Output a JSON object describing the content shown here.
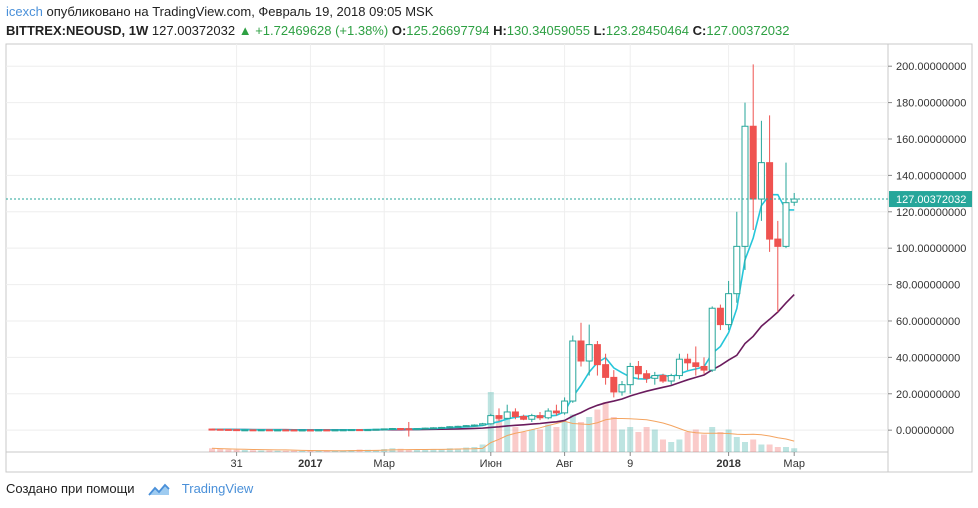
{
  "header": {
    "author": "icexch",
    "published_text": "опубликовано на TradingView.com, Февраль 19, 2018 09:05 MSK",
    "symbol": "BITTREX:NEOUSD, 1W",
    "price": "127.00372032",
    "change_arrow": "▲",
    "change": "+1.72469628 (+1.38%)",
    "o_label": "O:",
    "o_value": "125.26697794",
    "h_label": "H:",
    "h_value": "130.34059055",
    "l_label": "L:",
    "l_value": "123.28450464",
    "c_label": "C:",
    "c_value": "127.00372032"
  },
  "footer": {
    "created_with": "Создано при помощи",
    "brand": "TradingView"
  },
  "colors": {
    "up": "#26a69a",
    "down": "#ef5350",
    "ma_fast": "#26c6da",
    "ma_slow": "#6a1b5d",
    "vol_ma": "#f4a460",
    "price_tag": "#26a69a"
  },
  "chart_data": {
    "type": "candlestick",
    "y_axis": {
      "ylim": [
        -12,
        210
      ],
      "ticks": [
        "200.00000000",
        "180.00000000",
        "160.00000000",
        "140.00000000",
        "120.00000000",
        "100.00000000",
        "80.00000000",
        "60.00000000",
        "40.00000000",
        "20.00000000",
        "0.00000000"
      ],
      "tick_values": [
        200,
        180,
        160,
        140,
        120,
        100,
        80,
        60,
        40,
        20,
        0
      ]
    },
    "x_axis": {
      "labels": [
        "31",
        "2017",
        "Мар",
        "Июн",
        "Авг",
        "9",
        "2018",
        "Мар"
      ],
      "label_index": [
        3,
        12,
        21,
        34,
        43,
        51,
        63,
        71
      ]
    },
    "last_price_label": "127.00372032",
    "last_price": 127.0,
    "candles": [
      {
        "o": 0.6,
        "h": 0.8,
        "l": 0.4,
        "c": 0.5
      },
      {
        "o": 0.5,
        "h": 0.7,
        "l": 0.3,
        "c": 0.4
      },
      {
        "o": 0.4,
        "h": 0.6,
        "l": 0.2,
        "c": 0.3
      },
      {
        "o": 0.3,
        "h": 0.5,
        "l": 0.1,
        "c": 0.2
      },
      {
        "o": 0.2,
        "h": 0.4,
        "l": 0.1,
        "c": 0.2
      },
      {
        "o": 0.2,
        "h": 0.3,
        "l": 0.1,
        "c": 0.15
      },
      {
        "o": 0.15,
        "h": 0.3,
        "l": 0.1,
        "c": 0.2
      },
      {
        "o": 0.2,
        "h": 0.3,
        "l": 0.1,
        "c": 0.15
      },
      {
        "o": 0.15,
        "h": 0.25,
        "l": 0.1,
        "c": 0.15
      },
      {
        "o": 0.15,
        "h": 0.2,
        "l": 0.1,
        "c": 0.12
      },
      {
        "o": 0.12,
        "h": 0.2,
        "l": 0.08,
        "c": 0.1
      },
      {
        "o": 0.1,
        "h": 0.2,
        "l": 0.08,
        "c": 0.12
      },
      {
        "o": 0.12,
        "h": 0.18,
        "l": 0.08,
        "c": 0.1
      },
      {
        "o": 0.1,
        "h": 0.2,
        "l": 0.08,
        "c": 0.15
      },
      {
        "o": 0.15,
        "h": 0.25,
        "l": 0.1,
        "c": 0.14
      },
      {
        "o": 0.14,
        "h": 0.25,
        "l": 0.1,
        "c": 0.16
      },
      {
        "o": 0.16,
        "h": 0.3,
        "l": 0.12,
        "c": 0.2
      },
      {
        "o": 0.2,
        "h": 0.4,
        "l": 0.15,
        "c": 0.3
      },
      {
        "o": 0.3,
        "h": 0.5,
        "l": 0.2,
        "c": 0.25
      },
      {
        "o": 0.25,
        "h": 0.4,
        "l": 0.2,
        "c": 0.3
      },
      {
        "o": 0.3,
        "h": 0.6,
        "l": 0.2,
        "c": 0.5
      },
      {
        "o": 0.5,
        "h": 0.9,
        "l": 0.4,
        "c": 0.7
      },
      {
        "o": 0.7,
        "h": 1.2,
        "l": 0.5,
        "c": 0.9
      },
      {
        "o": 0.9,
        "h": 1.2,
        "l": 0.6,
        "c": 0.8
      },
      {
        "o": 0.8,
        "h": 4.5,
        "l": -3.5,
        "c": 0.6
      },
      {
        "o": 0.6,
        "h": 1.0,
        "l": 0.4,
        "c": 0.8
      },
      {
        "o": 0.8,
        "h": 1.4,
        "l": 0.6,
        "c": 1.1
      },
      {
        "o": 1.1,
        "h": 1.6,
        "l": 0.8,
        "c": 1.3
      },
      {
        "o": 1.3,
        "h": 1.8,
        "l": 1.0,
        "c": 1.5
      },
      {
        "o": 1.5,
        "h": 2.2,
        "l": 1.2,
        "c": 1.9
      },
      {
        "o": 1.9,
        "h": 2.4,
        "l": 1.5,
        "c": 2.1
      },
      {
        "o": 2.1,
        "h": 2.8,
        "l": 1.8,
        "c": 2.5
      },
      {
        "o": 2.5,
        "h": 3.2,
        "l": 2.0,
        "c": 2.8
      },
      {
        "o": 2.8,
        "h": 4.0,
        "l": 2.5,
        "c": 3.5
      },
      {
        "o": 3.5,
        "h": 9.0,
        "l": 3.0,
        "c": 8.0
      },
      {
        "o": 8.0,
        "h": 12.0,
        "l": 5.0,
        "c": 6.5
      },
      {
        "o": 6.5,
        "h": 14.0,
        "l": 6.0,
        "c": 10.0
      },
      {
        "o": 10.0,
        "h": 12.0,
        "l": 6.0,
        "c": 7.5
      },
      {
        "o": 7.5,
        "h": 8.5,
        "l": 5.5,
        "c": 6.0
      },
      {
        "o": 6.0,
        "h": 9.0,
        "l": 4.5,
        "c": 8.0
      },
      {
        "o": 8.0,
        "h": 10.0,
        "l": 5.5,
        "c": 6.8
      },
      {
        "o": 6.8,
        "h": 12.0,
        "l": 6.0,
        "c": 10.5
      },
      {
        "o": 10.5,
        "h": 14.0,
        "l": 8.0,
        "c": 9.5
      },
      {
        "o": 9.5,
        "h": 18.0,
        "l": 8.5,
        "c": 16.0
      },
      {
        "o": 16.0,
        "h": 52.0,
        "l": 15.0,
        "c": 49.0
      },
      {
        "o": 49.0,
        "h": 59.0,
        "l": 35.0,
        "c": 38.0
      },
      {
        "o": 38.0,
        "h": 58.0,
        "l": 30.0,
        "c": 47.0
      },
      {
        "o": 47.0,
        "h": 49.0,
        "l": 30.0,
        "c": 36.0
      },
      {
        "o": 36.0,
        "h": 42.0,
        "l": 25.0,
        "c": 29.0
      },
      {
        "o": 29.0,
        "h": 33.0,
        "l": 18.0,
        "c": 21.0
      },
      {
        "o": 21.0,
        "h": 27.0,
        "l": 19.0,
        "c": 25.0
      },
      {
        "o": 25.0,
        "h": 37.0,
        "l": 20.0,
        "c": 35.0
      },
      {
        "o": 35.0,
        "h": 38.0,
        "l": 28.0,
        "c": 31.0
      },
      {
        "o": 31.0,
        "h": 33.0,
        "l": 26.0,
        "c": 28.5
      },
      {
        "o": 28.5,
        "h": 32.0,
        "l": 25.0,
        "c": 30.0
      },
      {
        "o": 30.0,
        "h": 31.0,
        "l": 26.0,
        "c": 27.0
      },
      {
        "o": 27.0,
        "h": 31.0,
        "l": 25.0,
        "c": 30.0
      },
      {
        "o": 30.0,
        "h": 42.0,
        "l": 28.0,
        "c": 39.0
      },
      {
        "o": 39.0,
        "h": 42.0,
        "l": 33.0,
        "c": 37.0
      },
      {
        "o": 37.0,
        "h": 46.0,
        "l": 30.0,
        "c": 35.0
      },
      {
        "o": 35.0,
        "h": 40.0,
        "l": 31.0,
        "c": 33.0
      },
      {
        "o": 33.0,
        "h": 68.0,
        "l": 32.0,
        "c": 67.0
      },
      {
        "o": 67.0,
        "h": 69.0,
        "l": 55.0,
        "c": 58.0
      },
      {
        "o": 58.0,
        "h": 82.0,
        "l": 55.0,
        "c": 75.0
      },
      {
        "o": 75.0,
        "h": 120.0,
        "l": 70.0,
        "c": 101.0
      },
      {
        "o": 101.0,
        "h": 180.0,
        "l": 88.0,
        "c": 167.0
      },
      {
        "o": 167.0,
        "h": 201.0,
        "l": 110.0,
        "c": 127.0
      },
      {
        "o": 127.0,
        "h": 170.0,
        "l": 115.0,
        "c": 147.0
      },
      {
        "o": 147.0,
        "h": 173.0,
        "l": 98.0,
        "c": 105.0
      },
      {
        "o": 105.0,
        "h": 115.0,
        "l": 65.0,
        "c": 101.0
      },
      {
        "o": 101.0,
        "h": 147.0,
        "l": 100.0,
        "c": 125.0
      },
      {
        "o": 125.26697794,
        "h": 130.34059055,
        "l": 123.28450464,
        "c": 127.00372032
      }
    ],
    "volume": [
      1.5,
      1.2,
      1.0,
      0.9,
      0.8,
      0.7,
      0.6,
      0.6,
      0.5,
      0.5,
      0.5,
      0.4,
      0.4,
      0.5,
      0.6,
      0.5,
      0.6,
      0.8,
      1.0,
      0.9,
      0.8,
      1.2,
      1.5,
      1.3,
      1.0,
      0.8,
      0.9,
      1.0,
      1.2,
      1.5,
      1.4,
      1.8,
      2.0,
      3.0,
      24.0,
      14.0,
      16.0,
      10.0,
      8.0,
      9.0,
      9.0,
      11.0,
      10.0,
      12.0,
      15.0,
      12.0,
      14.0,
      17.0,
      20.0,
      14.0,
      9.0,
      10.0,
      8.0,
      10.0,
      9.0,
      5.0,
      4.0,
      5.0,
      8.0,
      9.0,
      7.0,
      10.0,
      8.0,
      9.0,
      6.0,
      4.0,
      5.0,
      3.0,
      3.0,
      2.0,
      2.0,
      1.5
    ]
  }
}
